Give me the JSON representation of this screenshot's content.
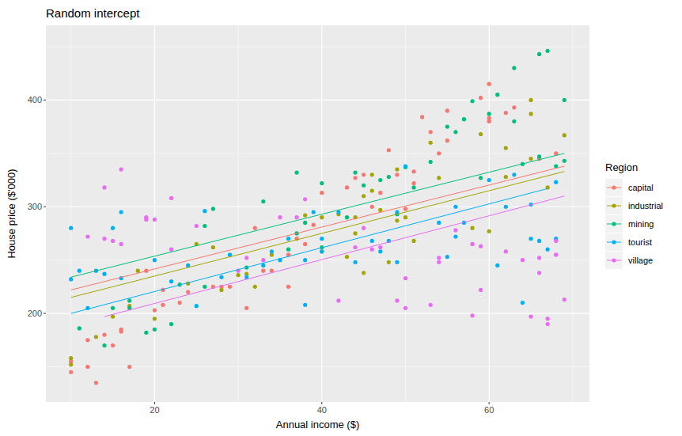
{
  "chart_data": {
    "type": "scatter",
    "title": "Random intercept",
    "x_label": "Annual income ($)",
    "y_label": "House price ($'000)",
    "legend_title": "Region",
    "legend": "right",
    "grid": true,
    "marker": "circle",
    "xlim": [
      7.0,
      72.0
    ],
    "xticks": [
      20,
      40,
      60
    ],
    "ylim": [
      117,
      470
    ],
    "yticks": [
      200,
      300,
      400
    ],
    "series": [
      {
        "name": "capital",
        "color": "#F8766D",
        "x": [
          10,
          10,
          12,
          12,
          13,
          14,
          15,
          16,
          16,
          17,
          19,
          20,
          21,
          21,
          23,
          24,
          27,
          28,
          29,
          31,
          32,
          33,
          34,
          36,
          36,
          37,
          38,
          39,
          40,
          43,
          44,
          45,
          46,
          47,
          48,
          49,
          50,
          51,
          51,
          52,
          53,
          54,
          55,
          59,
          60,
          60,
          60,
          62,
          63,
          66,
          68,
          55
        ],
        "values": [
          145,
          155,
          175,
          150,
          135,
          180,
          170,
          185,
          183,
          150,
          240,
          203,
          208,
          222,
          210,
          220,
          225,
          225,
          225,
          205,
          280,
          240,
          240,
          225,
          255,
          270,
          265,
          283,
          313,
          318,
          327,
          330,
          300,
          313,
          353,
          330,
          298,
          333,
          322,
          384,
          370,
          350,
          390,
          402,
          415,
          383,
          380,
          388,
          393,
          345,
          350,
          362
        ],
        "fit_x": [
          10,
          69
        ],
        "fit_y": [
          222,
          338
        ]
      },
      {
        "name": "industrial",
        "color": "#A3A500",
        "x": [
          10,
          10,
          13,
          15,
          17,
          18,
          20,
          24,
          25,
          27,
          28,
          30,
          31,
          32,
          34,
          38,
          40,
          40,
          42,
          43,
          44,
          44,
          45,
          45,
          46,
          46,
          47,
          48,
          49,
          49,
          50,
          51,
          53,
          54,
          58,
          59,
          60,
          62,
          62,
          65,
          65,
          65,
          67,
          69
        ],
        "values": [
          158,
          152,
          178,
          197,
          207,
          240,
          195,
          228,
          265,
          262,
          222,
          236,
          237,
          225,
          255,
          292,
          258,
          290,
          293,
          253,
          275,
          290,
          238,
          310,
          315,
          330,
          297,
          248,
          287,
          335,
          290,
          268,
          360,
          327,
          280,
          368,
          277,
          355,
          328,
          345,
          387,
          400,
          318,
          367
        ],
        "fit_x": [
          10,
          69
        ],
        "fit_y": [
          215,
          333
        ]
      },
      {
        "name": "mining",
        "color": "#00BF7D",
        "x": [
          11,
          14,
          15,
          17,
          17,
          19,
          20,
          22,
          23,
          26,
          26,
          27,
          31,
          33,
          36,
          37,
          37,
          38,
          40,
          40,
          43,
          44,
          45,
          47,
          48,
          49,
          50,
          51,
          53,
          55,
          57,
          58,
          60,
          61,
          63,
          63,
          64,
          66,
          66,
          67,
          68,
          69,
          69,
          56,
          59
        ],
        "values": [
          186,
          170,
          205,
          212,
          205,
          182,
          185,
          190,
          227,
          225,
          282,
          298,
          243,
          305,
          260,
          332,
          275,
          285,
          322,
          262,
          290,
          332,
          320,
          325,
          328,
          293,
          337,
          318,
          342,
          375,
          382,
          399,
          387,
          405,
          380,
          430,
          340,
          443,
          347,
          446,
          338,
          400,
          343,
          370,
          327
        ],
        "fit_x": [
          10,
          69
        ],
        "fit_y": [
          234,
          350
        ]
      },
      {
        "name": "tourist",
        "color": "#00B0F6",
        "x": [
          10,
          10,
          11,
          12,
          13,
          14,
          15,
          16,
          16,
          20,
          22,
          24,
          25,
          26,
          28,
          29,
          31,
          33,
          34,
          35,
          36,
          38,
          38,
          39,
          40,
          40,
          42,
          44,
          46,
          47,
          48,
          49,
          49,
          50,
          54,
          55,
          56,
          56,
          57,
          60,
          61,
          62,
          63,
          64,
          65,
          65,
          66,
          67,
          68,
          68
        ],
        "values": [
          280,
          232,
          240,
          205,
          240,
          237,
          280,
          295,
          233,
          250,
          230,
          245,
          207,
          296,
          234,
          255,
          234,
          245,
          258,
          250,
          270,
          250,
          208,
          295,
          258,
          270,
          295,
          248,
          268,
          258,
          268,
          248,
          295,
          338,
          285,
          253,
          300,
          272,
          285,
          325,
          245,
          300,
          330,
          210,
          302,
          270,
          268,
          260,
          270,
          323
        ],
        "fit_x": [
          10,
          67
        ],
        "fit_y": [
          200,
          317
        ]
      },
      {
        "name": "village",
        "color": "#E76BF3",
        "x": [
          12,
          14,
          14,
          15,
          16,
          16,
          19,
          19,
          20,
          22,
          22,
          25,
          30,
          31,
          33,
          35,
          37,
          38,
          42,
          44,
          45,
          46,
          47,
          49,
          50,
          50,
          53,
          54,
          54,
          56,
          58,
          58,
          59,
          59,
          62,
          64,
          65,
          66,
          66,
          67,
          67,
          68,
          68,
          69
        ],
        "values": [
          272,
          318,
          270,
          268,
          335,
          265,
          290,
          288,
          288,
          308,
          260,
          282,
          240,
          252,
          250,
          290,
          290,
          307,
          212,
          262,
          280,
          260,
          262,
          212,
          233,
          205,
          208,
          248,
          252,
          278,
          198,
          265,
          222,
          263,
          258,
          250,
          197,
          238,
          252,
          190,
          195,
          255,
          268,
          213
        ],
        "fit_x": [
          14,
          69
        ],
        "fit_y": [
          197,
          310
        ]
      }
    ]
  }
}
